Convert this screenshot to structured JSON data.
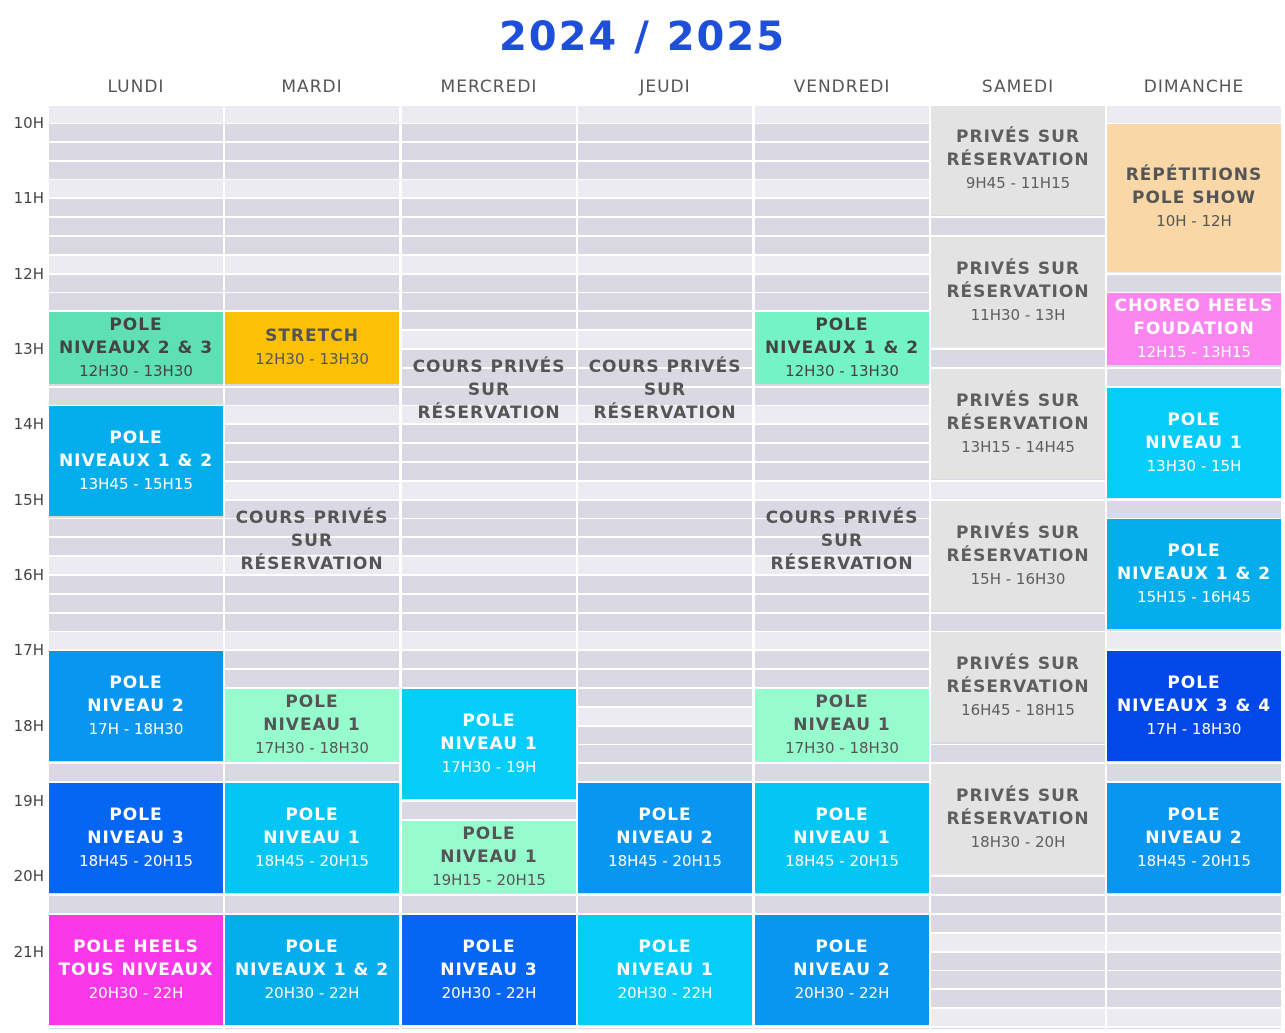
{
  "title": "2024 / 2025",
  "days": [
    "LUNDI",
    "MARDI",
    "MERCREDI",
    "JEUDI",
    "VENDREDI",
    "SAMEDI",
    "DIMANCHE"
  ],
  "hours": [
    "10H",
    "11H",
    "12H",
    "13H",
    "14H",
    "15H",
    "16H",
    "17H",
    "18H",
    "19H",
    "20H",
    "21H"
  ],
  "colors": {
    "stripe_dark": "#d9d8e3",
    "stripe_light": "#ecebf1",
    "private_bg": "#e3e3e3",
    "private_text": "#5e5e5e",
    "white_text": "#ffffff",
    "dark_text": "#4a4a4a"
  },
  "classes": [
    {
      "day": 0,
      "start": 12.5,
      "end": 13.5,
      "lines": [
        "POLE",
        "NIVEAUX 2 & 3",
        "12H30 - 13H30"
      ],
      "bg": "#5fe0b4",
      "fg": "#444444"
    },
    {
      "day": 0,
      "start": 13.75,
      "end": 15.25,
      "lines": [
        "POLE",
        "NIVEAUX 1 & 2",
        "13H45 - 15H15"
      ],
      "bg": "#04aeed",
      "fg": "#ffffff"
    },
    {
      "day": 0,
      "start": 17,
      "end": 18.5,
      "lines": [
        "POLE",
        "NIVEAU 2",
        "17H - 18H30"
      ],
      "bg": "#0896f1",
      "fg": "#ffffff"
    },
    {
      "day": 0,
      "start": 18.75,
      "end": 20.25,
      "lines": [
        "POLE",
        "NIVEAU 3",
        "18H45 - 20H15"
      ],
      "bg": "#0566f4",
      "fg": "#ffffff"
    },
    {
      "day": 0,
      "start": 20.5,
      "end": 22,
      "lines": [
        "POLE HEELS",
        "TOUS NIVEAUX",
        "20H30 - 22H"
      ],
      "bg": "#fb37ea",
      "fg": "#ffffff"
    },
    {
      "day": 1,
      "start": 12.5,
      "end": 13.5,
      "lines": [
        "STRETCH",
        "",
        "12H30 - 13H30"
      ],
      "bg": "#fcc104",
      "fg": "#555555"
    },
    {
      "day": 1,
      "start": 17.5,
      "end": 18.5,
      "lines": [
        "POLE",
        "NIVEAU 1",
        "17H30 - 18H30"
      ],
      "bg": "#96fcce",
      "fg": "#555555"
    },
    {
      "day": 1,
      "start": 18.75,
      "end": 20.25,
      "lines": [
        "POLE",
        "NIVEAU 1",
        "18H45 - 20H15"
      ],
      "bg": "#04c6f4",
      "fg": "#ffffff"
    },
    {
      "day": 1,
      "start": 20.5,
      "end": 22,
      "lines": [
        "POLE",
        "NIVEAUX 1 & 2",
        "20H30 - 22H"
      ],
      "bg": "#04aeed",
      "fg": "#ffffff"
    },
    {
      "day": 2,
      "start": 17.5,
      "end": 19,
      "lines": [
        "POLE",
        "NIVEAU 1",
        "17H30 - 19H"
      ],
      "bg": "#05cdfa",
      "fg": "#ffffff"
    },
    {
      "day": 2,
      "start": 19.25,
      "end": 20.25,
      "lines": [
        "POLE",
        "NIVEAU 1",
        "19H15 - 20H15"
      ],
      "bg": "#96fcce",
      "fg": "#555555"
    },
    {
      "day": 2,
      "start": 20.5,
      "end": 22,
      "lines": [
        "POLE",
        "NIVEAU 3",
        "20H30 - 22H"
      ],
      "bg": "#0566f4",
      "fg": "#ffffff"
    },
    {
      "day": 3,
      "start": 18.75,
      "end": 20.25,
      "lines": [
        "POLE",
        "NIVEAU 2",
        "18H45 - 20H15"
      ],
      "bg": "#0896f1",
      "fg": "#ffffff"
    },
    {
      "day": 3,
      "start": 20.5,
      "end": 22,
      "lines": [
        "POLE",
        "NIVEAU 1",
        "20H30 - 22H"
      ],
      "bg": "#05cdfa",
      "fg": "#ffffff"
    },
    {
      "day": 4,
      "start": 12.5,
      "end": 13.5,
      "lines": [
        "POLE",
        "NIVEAUX 1 & 2",
        "12H30 - 13H30"
      ],
      "bg": "#74f4c4",
      "fg": "#444444"
    },
    {
      "day": 4,
      "start": 17.5,
      "end": 18.5,
      "lines": [
        "POLE",
        "NIVEAU 1",
        "17H30 - 18H30"
      ],
      "bg": "#96fcce",
      "fg": "#555555"
    },
    {
      "day": 4,
      "start": 18.75,
      "end": 20.25,
      "lines": [
        "POLE",
        "NIVEAU 1",
        "18H45 - 20H15"
      ],
      "bg": "#04c6f4",
      "fg": "#ffffff"
    },
    {
      "day": 4,
      "start": 20.5,
      "end": 22,
      "lines": [
        "POLE",
        "NIVEAU 2",
        "20H30 - 22H"
      ],
      "bg": "#0896f1",
      "fg": "#ffffff"
    },
    {
      "day": 5,
      "start": 9.75,
      "end": 11.25,
      "lines": [
        "PRIVÉS SUR",
        "RÉSERVATION",
        "9H45 - 11H15"
      ],
      "bg": "#e3e3e3",
      "fg": "#5e5e5e"
    },
    {
      "day": 5,
      "start": 11.5,
      "end": 13,
      "lines": [
        "PRIVÉS SUR",
        "RÉSERVATION",
        "11H30 - 13H"
      ],
      "bg": "#e3e3e3",
      "fg": "#5e5e5e"
    },
    {
      "day": 5,
      "start": 13.25,
      "end": 14.75,
      "lines": [
        "PRIVÉS SUR",
        "RÉSERVATION",
        "13H15 - 14H45"
      ],
      "bg": "#e3e3e3",
      "fg": "#5e5e5e"
    },
    {
      "day": 5,
      "start": 15,
      "end": 16.5,
      "lines": [
        "PRIVÉS SUR",
        "RÉSERVATION",
        "15H - 16H30"
      ],
      "bg": "#e3e3e3",
      "fg": "#5e5e5e"
    },
    {
      "day": 5,
      "start": 16.75,
      "end": 18.25,
      "lines": [
        "PRIVÉS SUR",
        "RÉSERVATION",
        "16H45 - 18H15"
      ],
      "bg": "#e3e3e3",
      "fg": "#5e5e5e"
    },
    {
      "day": 5,
      "start": 18.5,
      "end": 20,
      "lines": [
        "PRIVÉS SUR",
        "RÉSERVATION",
        "18H30 - 20H"
      ],
      "bg": "#e3e3e3",
      "fg": "#5e5e5e"
    },
    {
      "day": 6,
      "start": 10,
      "end": 12,
      "lines": [
        "RÉPÉTITIONS",
        "POLE SHOW",
        "10H - 12H"
      ],
      "bg": "#fad7a6",
      "fg": "#555555"
    },
    {
      "day": 6,
      "start": 12.25,
      "end": 13.25,
      "lines": [
        "CHOREO HEELS",
        "FOUDATION",
        "12H15 - 13H15"
      ],
      "bg": "#fb86ef",
      "fg": "#ffffff"
    },
    {
      "day": 6,
      "start": 13.5,
      "end": 15,
      "lines": [
        "POLE",
        "NIVEAU 1",
        "13H30 - 15H"
      ],
      "bg": "#05cdfa",
      "fg": "#ffffff"
    },
    {
      "day": 6,
      "start": 15.25,
      "end": 16.75,
      "lines": [
        "POLE",
        "NIVEAUX 1 & 2",
        "15H15 - 16H45"
      ],
      "bg": "#04aeed",
      "fg": "#ffffff"
    },
    {
      "day": 6,
      "start": 17,
      "end": 18.5,
      "lines": [
        "POLE",
        "NIVEAUX 3 & 4",
        "17H - 18H30"
      ],
      "bg": "#0247e8",
      "fg": "#ffffff"
    },
    {
      "day": 6,
      "start": 18.75,
      "end": 20.25,
      "lines": [
        "POLE",
        "NIVEAU 2",
        "18H45 - 20H15"
      ],
      "bg": "#0896f1",
      "fg": "#ffffff"
    }
  ],
  "notes": [
    {
      "day": 2,
      "start": 13,
      "lines": [
        "COURS PRIVÉS",
        "SUR",
        "RÉSERVATION"
      ]
    },
    {
      "day": 3,
      "start": 13,
      "lines": [
        "COURS PRIVÉS",
        "SUR",
        "RÉSERVATION"
      ]
    },
    {
      "day": 1,
      "start": 15,
      "lines": [
        "COURS PRIVÉS",
        "SUR",
        "RÉSERVATION"
      ]
    },
    {
      "day": 4,
      "start": 15,
      "lines": [
        "COURS PRIVÉS",
        "SUR",
        "RÉSERVATION"
      ]
    }
  ]
}
